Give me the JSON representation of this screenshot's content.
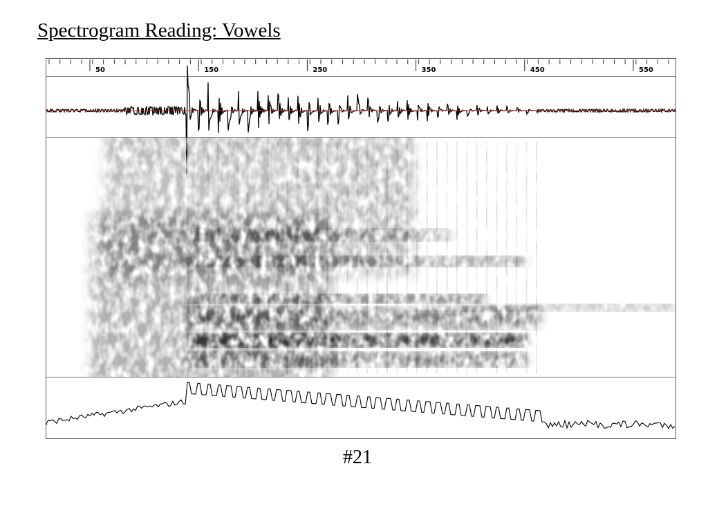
{
  "header": {
    "title": "Spectrogram Reading: Vowels"
  },
  "ruler": {
    "labels": [
      50,
      150,
      250,
      350,
      450,
      550
    ]
  },
  "footer": {
    "slide_number": "#21"
  }
}
